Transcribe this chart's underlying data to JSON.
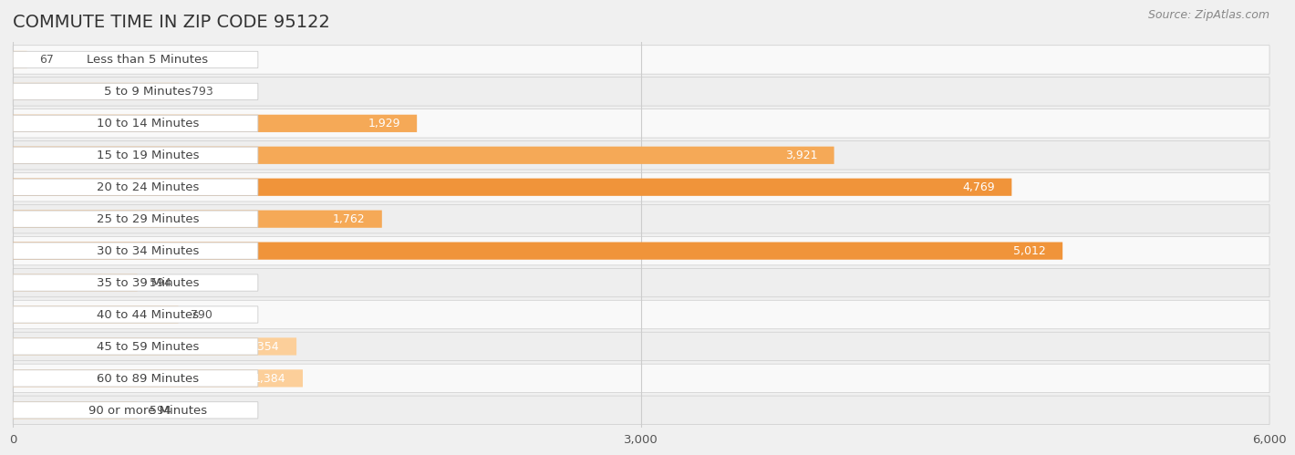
{
  "title": "COMMUTE TIME IN ZIP CODE 95122",
  "source": "Source: ZipAtlas.com",
  "categories": [
    "Less than 5 Minutes",
    "5 to 9 Minutes",
    "10 to 14 Minutes",
    "15 to 19 Minutes",
    "20 to 24 Minutes",
    "25 to 29 Minutes",
    "30 to 34 Minutes",
    "35 to 39 Minutes",
    "40 to 44 Minutes",
    "45 to 59 Minutes",
    "60 to 89 Minutes",
    "90 or more Minutes"
  ],
  "values": [
    67,
    793,
    1929,
    3921,
    4769,
    1762,
    5012,
    594,
    790,
    1354,
    1384,
    594
  ],
  "bar_color_light": "#FCCF9A",
  "bar_color_medium": "#F5A957",
  "bar_color_dark": "#F0943A",
  "bg_color": "#f0f0f0",
  "row_bg_light": "#f9f9f9",
  "row_bg_dark": "#eeeeee",
  "label_bg": "#ffffff",
  "label_border": "#cccccc",
  "xlim": [
    0,
    6000
  ],
  "xticks": [
    0,
    3000,
    6000
  ],
  "title_fontsize": 14,
  "label_fontsize": 9.5,
  "value_fontsize": 9,
  "source_fontsize": 9,
  "title_color": "#333333",
  "label_text_color": "#444444",
  "value_color_inside": "#ffffff",
  "value_color_outside": "#555555"
}
